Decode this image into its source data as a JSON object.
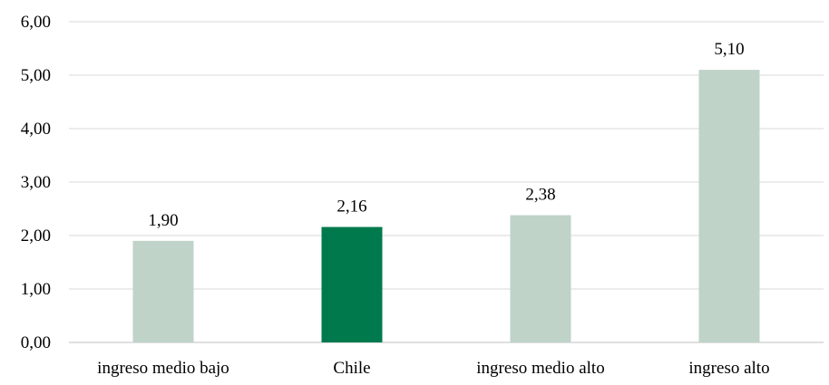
{
  "chart_data": {
    "type": "bar",
    "categories": [
      "ingreso medio bajo",
      "Chile",
      "ingreso medio alto",
      "ingreso alto"
    ],
    "values": [
      1.9,
      2.16,
      2.38,
      5.1
    ],
    "value_labels": [
      "1,90",
      "2,16",
      "2,38",
      "5,10"
    ],
    "highlight_index": 1,
    "ylim": [
      0,
      6
    ],
    "yticks": [
      0,
      1,
      2,
      3,
      4,
      5,
      6
    ],
    "ytick_labels": [
      "0,00",
      "1,00",
      "2,00",
      "3,00",
      "4,00",
      "5,00",
      "6,00"
    ],
    "grid": true,
    "title": "",
    "xlabel": "",
    "ylabel": ""
  },
  "colors": {
    "bar": "#bfd3c9",
    "highlight": "#007a4d",
    "grid": "#d9d9d9",
    "axis": "#bfbfbf"
  }
}
